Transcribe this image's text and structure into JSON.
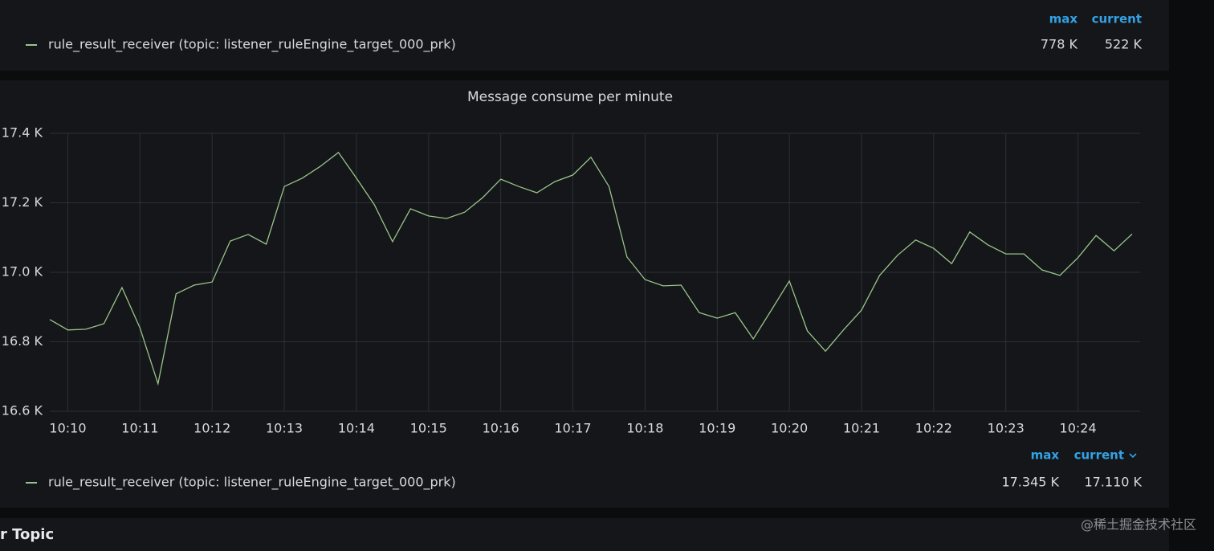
{
  "top_panel": {
    "legend_columns": [
      "max",
      "current"
    ],
    "series_name": "rule_result_receiver (topic: listener_ruleEngine_target_000_prk)",
    "max": "778 K",
    "current": "522 K"
  },
  "chart_data": {
    "type": "line",
    "title": "Message consume per minute",
    "categories": [
      null,
      "10:10",
      null,
      null,
      null,
      "10:11",
      null,
      null,
      null,
      "10:12",
      null,
      null,
      null,
      "10:13",
      null,
      null,
      null,
      "10:14",
      null,
      null,
      null,
      "10:15",
      null,
      null,
      null,
      "10:16",
      null,
      null,
      null,
      "10:17",
      null,
      null,
      null,
      "10:18",
      null,
      null,
      null,
      "10:19",
      null,
      null,
      null,
      "10:20",
      null,
      null,
      null,
      "10:21",
      null,
      null,
      null,
      "10:22",
      null,
      null,
      null,
      "10:23",
      null,
      null,
      null,
      "10:24",
      null,
      null,
      null
    ],
    "series": [
      {
        "name": "rule_result_receiver (topic: listener_ruleEngine_target_000_prk)",
        "color": "#9ac48a",
        "values": [
          16864,
          16834,
          16836,
          16852,
          16956,
          16840,
          16679,
          16938,
          16963,
          16972,
          17090,
          17109,
          17081,
          17247,
          17271,
          17305,
          17345,
          17271,
          17194,
          17088,
          17183,
          17162,
          17155,
          17173,
          17215,
          17268,
          17247,
          17229,
          17261,
          17280,
          17331,
          17247,
          17044,
          16979,
          16961,
          16963,
          16884,
          16868,
          16884,
          16808,
          16891,
          16975,
          16831,
          16773,
          16834,
          16891,
          16991,
          17049,
          17093,
          17069,
          17025,
          17116,
          17079,
          17053,
          17053,
          17007,
          16991,
          17042,
          17106,
          17062,
          17110
        ],
        "stats": {
          "max": 17345,
          "current": 17110
        },
        "stats_labels": {
          "max": "17.345 K",
          "current": "17.110 K"
        }
      }
    ],
    "legend_columns": [
      "max",
      "current"
    ],
    "ylim": [
      16600,
      17400
    ],
    "yticks": [
      {
        "value": 16600,
        "label": "16.6 K"
      },
      {
        "value": 16800,
        "label": "16.8 K"
      },
      {
        "value": 17000,
        "label": "17.0 K"
      },
      {
        "value": 17200,
        "label": "17.2 K"
      },
      {
        "value": 17400,
        "label": "17.4 K"
      }
    ],
    "grid": true
  },
  "section_title": "r Topic",
  "watermark": "@稀土掘金技术社区"
}
